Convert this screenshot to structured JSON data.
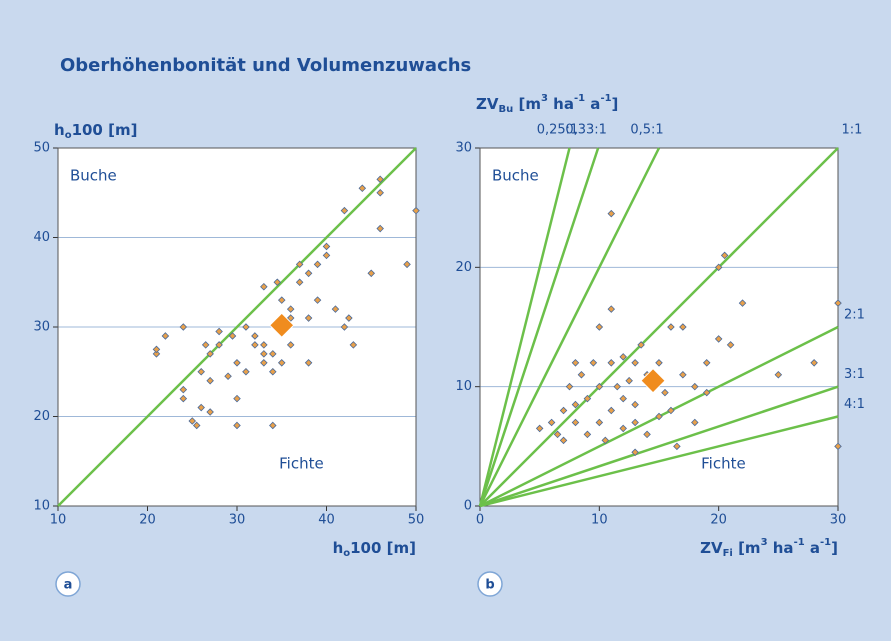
{
  "title": "Oberhöhenbonität und Volumenzuwachs",
  "chart_data": [
    {
      "type": "scatter",
      "panel": "a",
      "y_label": [
        "h",
        {
          "sub": "o"
        },
        "100 [m]"
      ],
      "x_label": [
        "h",
        {
          "sub": "o"
        },
        "100 [m]"
      ],
      "annotations": [
        "Buche",
        "Fichte"
      ],
      "xlim": [
        10,
        50
      ],
      "ylim": [
        10,
        50
      ],
      "xticks": [
        10,
        20,
        30,
        40,
        50
      ],
      "yticks": [
        10,
        20,
        30,
        40,
        50
      ],
      "grid": true,
      "color": "#e8a04a",
      "mean_color": "#f08c1e",
      "line_color": "#6cc04a",
      "x": [
        21,
        21,
        22,
        24,
        24,
        25,
        25.5,
        26,
        26,
        26.5,
        27,
        27,
        28,
        28,
        29,
        29.5,
        30,
        30,
        31,
        31,
        32,
        32,
        33,
        33,
        33,
        34,
        34,
        34,
        34.5,
        35,
        35,
        36,
        36,
        37,
        37,
        38,
        38,
        39,
        39,
        40,
        40,
        41,
        42,
        42,
        42.5,
        43,
        44,
        45,
        46,
        46,
        46,
        49,
        50,
        24,
        27,
        30,
        33,
        36,
        38
      ],
      "y": [
        27,
        27.5,
        29,
        30,
        23,
        19.5,
        19,
        21,
        25,
        28,
        20.5,
        27,
        28,
        29.5,
        24.5,
        29,
        19,
        26,
        25,
        30,
        28,
        29,
        28,
        26,
        34.5,
        25,
        27,
        19,
        35,
        33,
        26,
        28,
        31,
        35,
        37,
        31,
        36,
        33,
        37,
        38,
        39,
        32,
        30,
        43,
        31,
        28,
        45.5,
        36,
        46.5,
        45,
        41,
        37,
        43,
        22,
        24,
        22,
        27,
        32,
        26
      ],
      "mean": {
        "x": 35,
        "y": 30.2
      }
    },
    {
      "type": "scatter",
      "panel": "b",
      "y_label": [
        "ZV",
        {
          "sub": "Bu"
        },
        " [m",
        {
          "sup": "3"
        },
        " ha",
        {
          "sup": "-1"
        },
        " a",
        {
          "sup": "-1"
        },
        "]"
      ],
      "x_label": [
        "ZV",
        {
          "sub": "Fi"
        },
        " [m",
        {
          "sup": "3"
        },
        " ha",
        {
          "sup": "-1"
        },
        " a",
        {
          "sup": "-1"
        },
        "]"
      ],
      "annotations": [
        "Buche",
        "Fichte"
      ],
      "xlim": [
        0,
        30
      ],
      "ylim": [
        0,
        30
      ],
      "xticks": [
        0,
        10,
        20,
        30
      ],
      "yticks": [
        0,
        10,
        20,
        30
      ],
      "grid": true,
      "color": "#e8a04a",
      "mean_color": "#f08c1e",
      "line_color": "#6cc04a",
      "ratios": [
        {
          "value": 0.25,
          "label": "0,25:1"
        },
        {
          "value": 0.33,
          "label": "0,33:1"
        },
        {
          "value": 0.5,
          "label": "0,5:1"
        },
        {
          "value": 1,
          "label": "1:1"
        },
        {
          "value": 2,
          "label": "2:1"
        },
        {
          "value": 3,
          "label": "3:1"
        },
        {
          "value": 4,
          "label": "4:1"
        }
      ],
      "x": [
        5,
        6,
        6.5,
        7,
        7,
        7.5,
        8,
        8,
        8,
        8.5,
        9,
        9,
        9.5,
        10,
        10,
        10,
        10.5,
        11,
        11,
        11,
        11.5,
        12,
        12,
        12,
        12.5,
        13,
        13,
        13,
        13.5,
        14,
        14,
        15,
        15,
        15.5,
        16,
        16,
        16.5,
        17,
        17,
        18,
        18,
        19,
        19,
        20,
        20,
        20.5,
        21,
        22,
        25,
        28,
        30,
        30,
        11,
        13
      ],
      "y": [
        6.5,
        7,
        6,
        8,
        5.5,
        10,
        12,
        7,
        8.5,
        11,
        9,
        6,
        12,
        10,
        15,
        7,
        5.5,
        24.5,
        12,
        8,
        10,
        12.5,
        9,
        6.5,
        10.5,
        12,
        8.5,
        7,
        13.5,
        11,
        6,
        12,
        7.5,
        9.5,
        15,
        8,
        5,
        11,
        15,
        10,
        7,
        12,
        9.5,
        20,
        14,
        21,
        13.5,
        17,
        11,
        12,
        17,
        5,
        16.5,
        4.5
      ],
      "mean": {
        "x": 14.5,
        "y": 10.5
      }
    }
  ]
}
